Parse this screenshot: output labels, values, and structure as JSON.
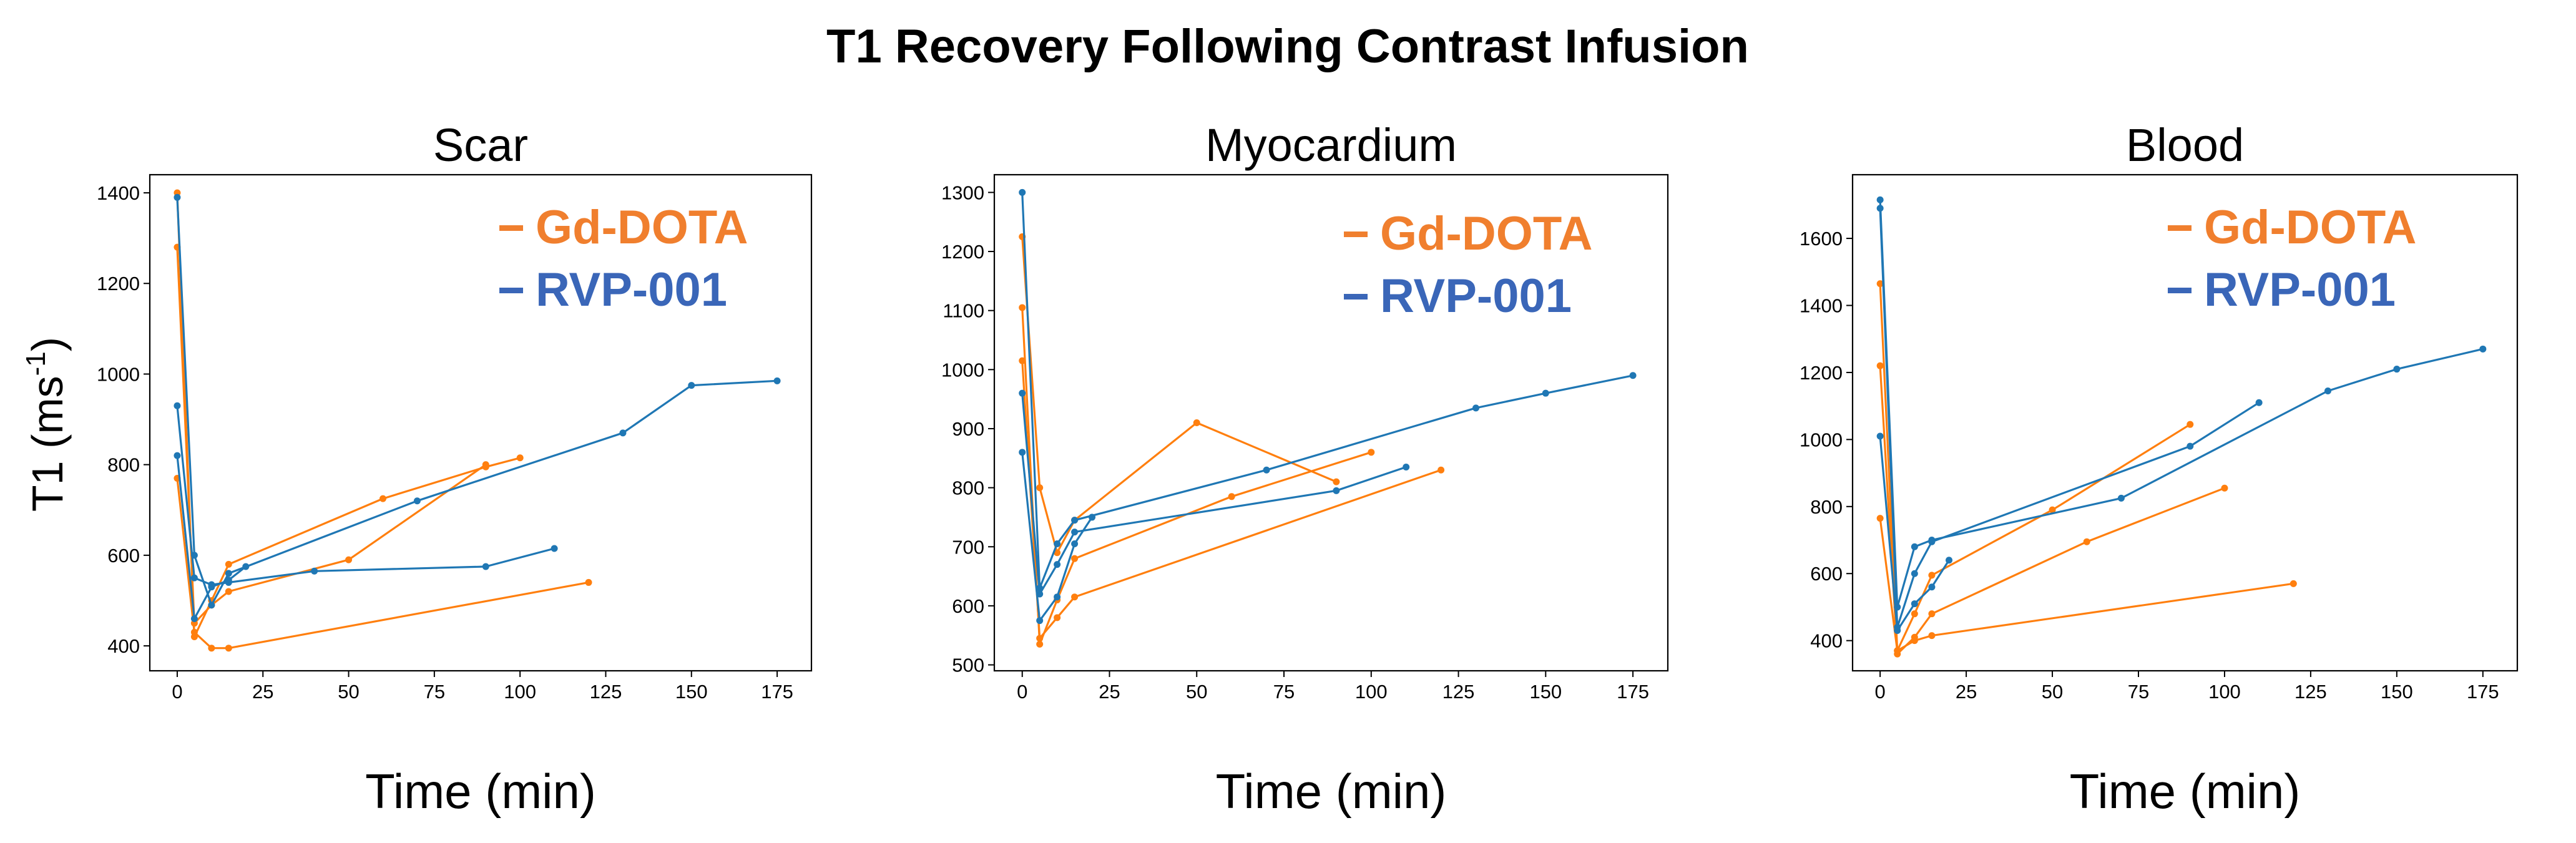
{
  "chart_data": {
    "type": "line",
    "title": "T1 Recovery Following Contrast Infusion",
    "ylabel": "T1 (ms",
    "ylabel_sup": "-1",
    "ylabel_close": ")",
    "xlabel": "Time (min)",
    "colors": {
      "Gd-DOTA": "#ff7f0e",
      "RVP-001": "#1f77b4"
    },
    "legend_colors": {
      "Gd-DOTA": "#f07f2e",
      "RVP-001": "#3a66b8"
    },
    "legend": [
      "Gd-DOTA",
      "RVP-001"
    ],
    "legend_position": "top-right",
    "subplots": [
      {
        "title": "Scar",
        "xlim": [
          -8,
          185
        ],
        "ylim": [
          345,
          1440
        ],
        "xticks": [
          0,
          25,
          50,
          75,
          100,
          125,
          150,
          175
        ],
        "yticks": [
          400,
          600,
          800,
          1000,
          1200,
          1400
        ],
        "series": [
          {
            "name": "Gd-DOTA",
            "x": [
              0,
              5,
              10,
              15,
              60,
              90,
              100
            ],
            "y": [
              1400,
              420,
              500,
              580,
              725,
              795,
              815
            ]
          },
          {
            "name": "Gd-DOTA",
            "x": [
              0,
              5,
              10,
              15,
              50,
              90
            ],
            "y": [
              1280,
              450,
              490,
              520,
              590,
              800
            ]
          },
          {
            "name": "Gd-DOTA",
            "x": [
              0,
              5,
              10,
              15,
              120
            ],
            "y": [
              770,
              430,
              395,
              395,
              540
            ]
          },
          {
            "name": "RVP-001",
            "x": [
              0,
              5,
              10,
              15,
              70,
              130,
              150,
              175
            ],
            "y": [
              1390,
              600,
              490,
              560,
              720,
              870,
              975,
              985
            ]
          },
          {
            "name": "RVP-001",
            "x": [
              0,
              5,
              10,
              15,
              40,
              90,
              110
            ],
            "y": [
              930,
              550,
              535,
              540,
              565,
              575,
              615
            ]
          },
          {
            "name": "RVP-001",
            "x": [
              0,
              5,
              10,
              15,
              20
            ],
            "y": [
              820,
              460,
              530,
              545,
              575
            ]
          }
        ]
      },
      {
        "title": "Myocardium",
        "xlim": [
          -8,
          185
        ],
        "ylim": [
          490,
          1330
        ],
        "xticks": [
          0,
          25,
          50,
          75,
          100,
          125,
          150,
          175
        ],
        "yticks": [
          500,
          600,
          700,
          800,
          900,
          1000,
          1100,
          1200,
          1300
        ],
        "series": [
          {
            "name": "Gd-DOTA",
            "x": [
              0,
              5,
              10,
              15,
              50,
              90
            ],
            "y": [
              1225,
              800,
              690,
              745,
              910,
              810
            ]
          },
          {
            "name": "Gd-DOTA",
            "x": [
              0,
              5,
              10,
              15,
              60,
              100
            ],
            "y": [
              1105,
              535,
              610,
              680,
              785,
              860
            ]
          },
          {
            "name": "Gd-DOTA",
            "x": [
              0,
              5,
              10,
              15,
              120
            ],
            "y": [
              1015,
              545,
              580,
              615,
              830
            ]
          },
          {
            "name": "RVP-001",
            "x": [
              0,
              5,
              10,
              15,
              70,
              130,
              150,
              175
            ],
            "y": [
              1300,
              630,
              705,
              745,
              830,
              935,
              960,
              990
            ]
          },
          {
            "name": "RVP-001",
            "x": [
              0,
              5,
              10,
              15,
              90,
              110
            ],
            "y": [
              960,
              620,
              670,
              725,
              795,
              835
            ]
          },
          {
            "name": "RVP-001",
            "x": [
              0,
              5,
              10,
              15,
              20
            ],
            "y": [
              860,
              575,
              615,
              705,
              750
            ]
          }
        ]
      },
      {
        "title": "Blood",
        "xlim": [
          -8,
          185
        ],
        "ylim": [
          310,
          1790
        ],
        "xticks": [
          0,
          25,
          50,
          75,
          100,
          125,
          150,
          175
        ],
        "yticks": [
          400,
          600,
          800,
          1000,
          1200,
          1400,
          1600
        ],
        "series": [
          {
            "name": "Gd-DOTA",
            "x": [
              0,
              5,
              10,
              15,
              50,
              90
            ],
            "y": [
              1465,
              370,
              480,
              595,
              790,
              1045
            ]
          },
          {
            "name": "Gd-DOTA",
            "x": [
              0,
              5,
              10,
              15,
              60,
              100
            ],
            "y": [
              1220,
              360,
              410,
              480,
              695,
              855
            ]
          },
          {
            "name": "Gd-DOTA",
            "x": [
              0,
              5,
              10,
              15,
              120
            ],
            "y": [
              765,
              370,
              400,
              415,
              570
            ]
          },
          {
            "name": "RVP-001",
            "x": [
              0,
              5,
              10,
              15,
              70,
              130,
              150,
              175
            ],
            "y": [
              1715,
              500,
              680,
              700,
              825,
              1145,
              1210,
              1270
            ]
          },
          {
            "name": "RVP-001",
            "x": [
              0,
              5,
              10,
              15,
              90,
              110
            ],
            "y": [
              1690,
              440,
              600,
              695,
              980,
              1110
            ]
          },
          {
            "name": "RVP-001",
            "x": [
              0,
              5,
              10,
              15,
              20
            ],
            "y": [
              1010,
              430,
              510,
              560,
              640
            ]
          }
        ]
      }
    ]
  }
}
